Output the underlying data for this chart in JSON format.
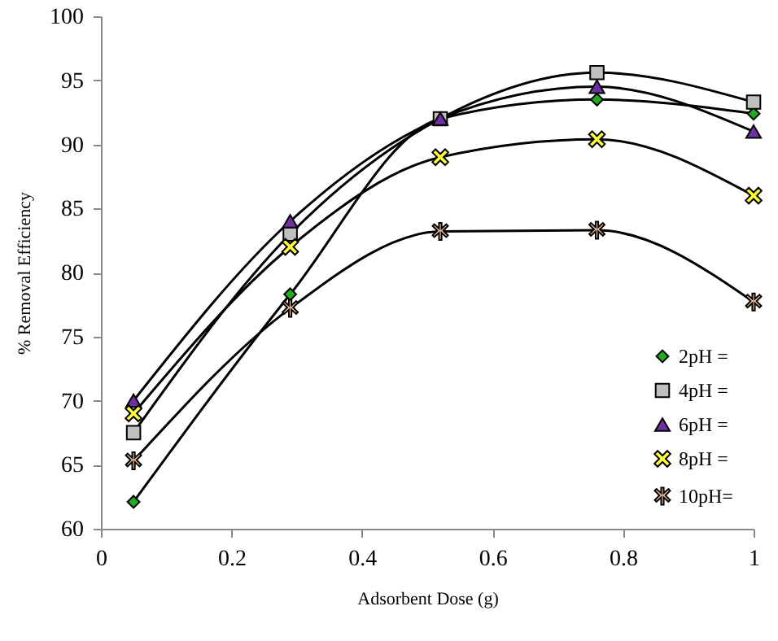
{
  "chart_data": {
    "type": "line",
    "xlabel": "Adsorbent Dose (g)",
    "ylabel": "% Removal Efficiency",
    "x": [
      0.05,
      0.29,
      0.52,
      0.76,
      1
    ],
    "series": [
      {
        "name": "2pH =",
        "color": "#22aa22",
        "marker": "diamond",
        "values": [
          62.1,
          78.3,
          92,
          93.5,
          92.4
        ]
      },
      {
        "name": "4pH =",
        "color": "#c0c0c0",
        "marker": "square",
        "values": [
          67.5,
          83,
          92,
          95.6,
          93.3
        ]
      },
      {
        "name": "6pH =",
        "color": "#7030a0",
        "marker": "triangle",
        "values": [
          70,
          84,
          92,
          94.5,
          91
        ]
      },
      {
        "name": "8pH =",
        "color": "#ffff33",
        "marker": "cross",
        "values": [
          69,
          82,
          89,
          90.4,
          86
        ]
      },
      {
        "name": "10pH=",
        "color": "#f8c8a0",
        "marker": "star",
        "values": [
          65.3,
          77.2,
          83.2,
          83.3,
          77.7
        ]
      }
    ],
    "xlim": [
      0,
      1
    ],
    "xticks": [
      0,
      0.2,
      0.4,
      0.6,
      0.8,
      1
    ],
    "ylim": [
      60,
      100
    ],
    "yticks": [
      60,
      65,
      70,
      75,
      80,
      85,
      90,
      95,
      100
    ],
    "grid": false,
    "legend": "bottom right",
    "line_style": "solid"
  }
}
